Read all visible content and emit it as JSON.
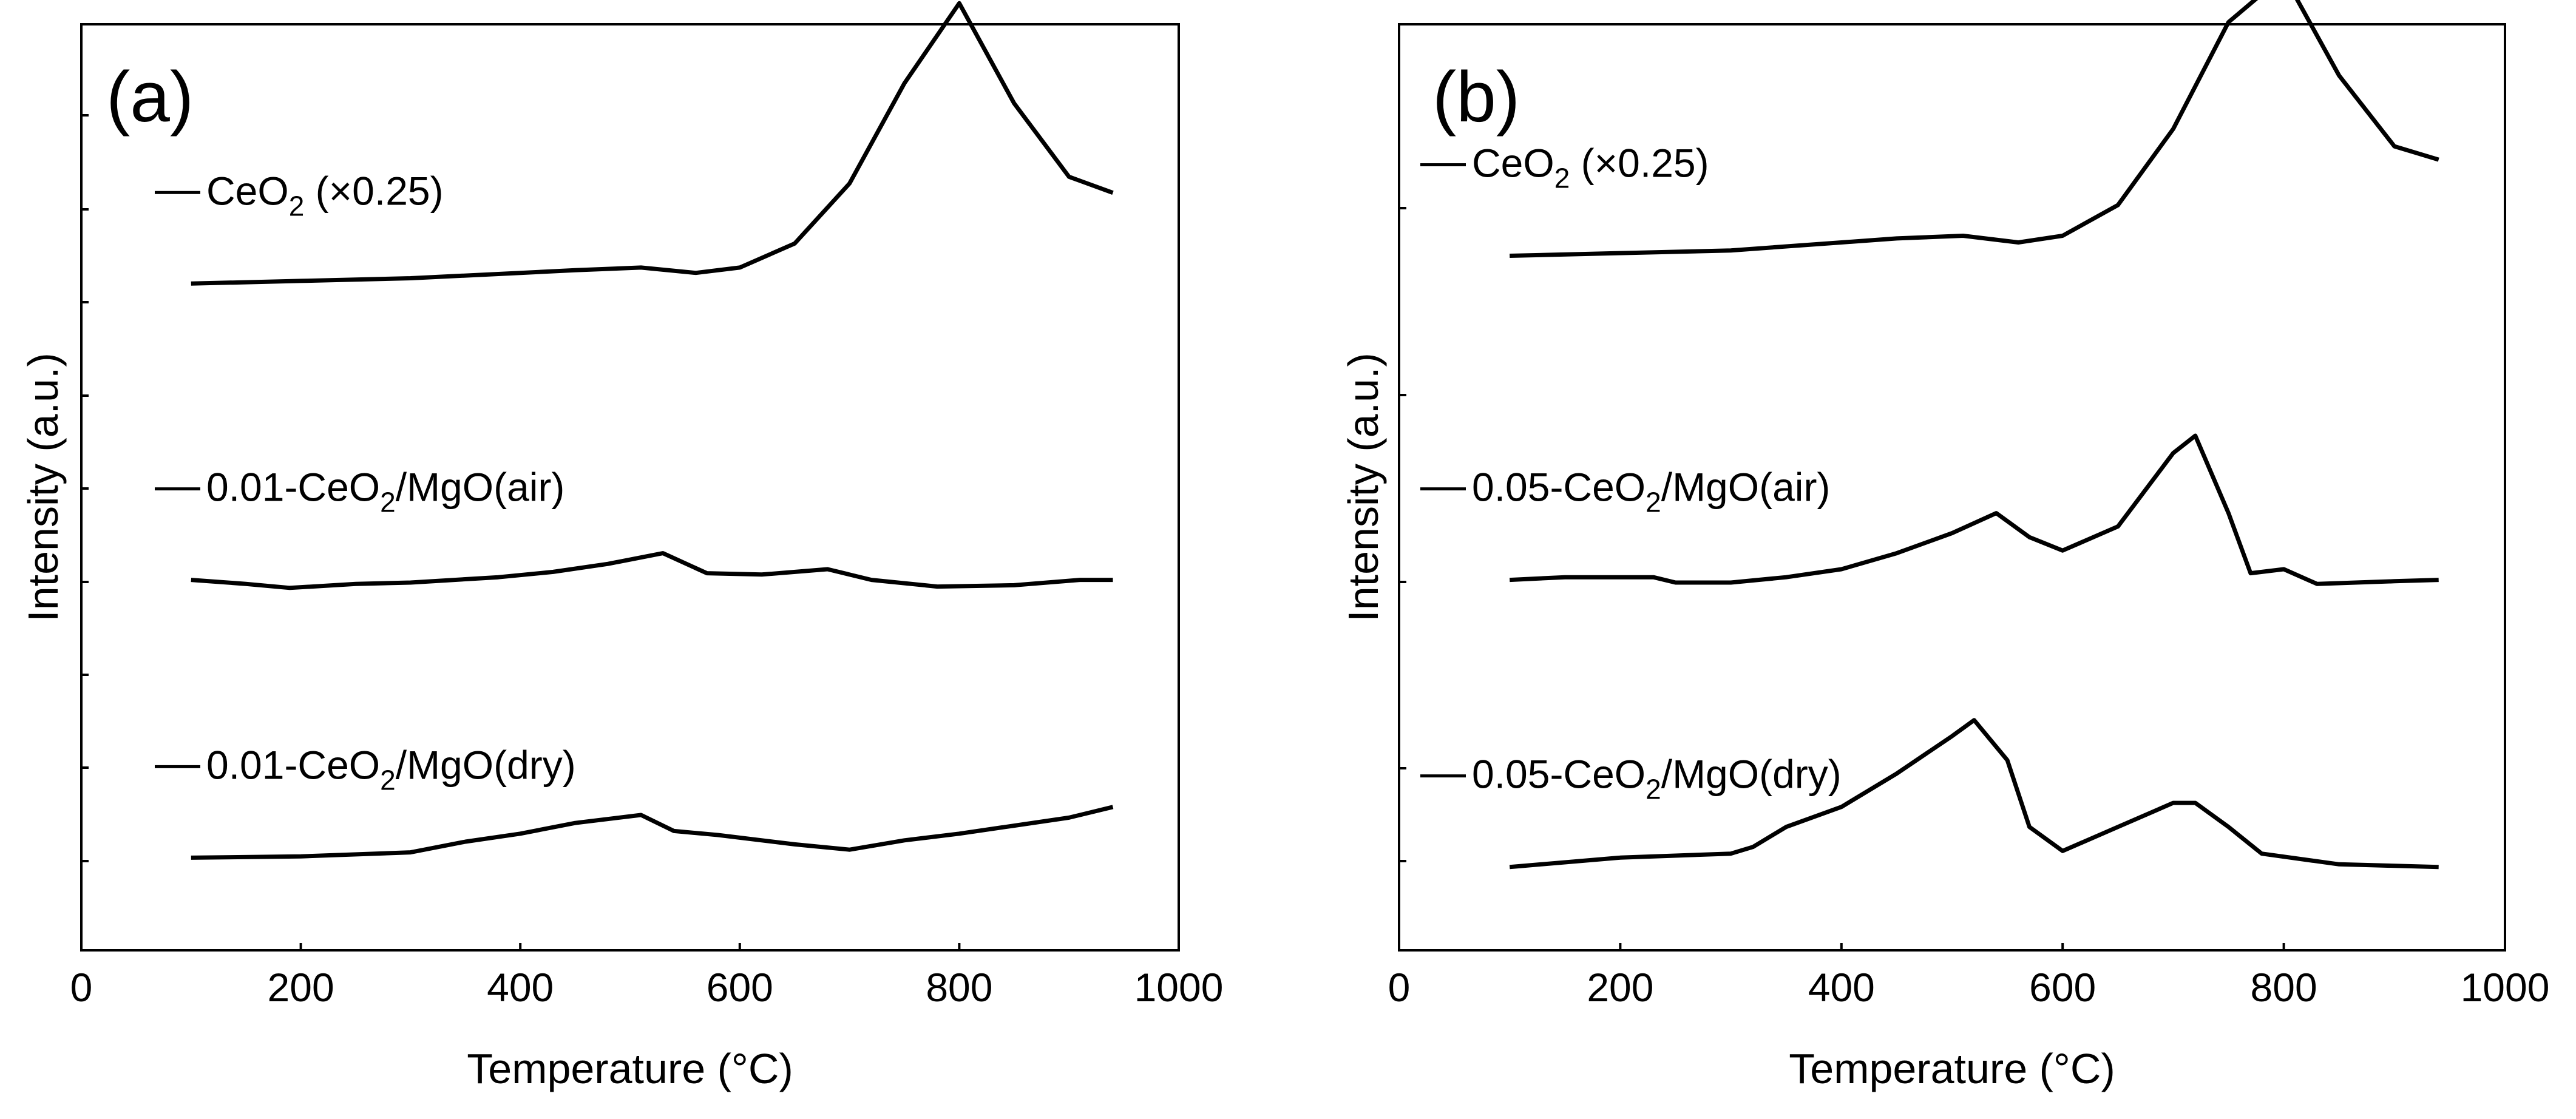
{
  "chart_data": [
    {
      "type": "line",
      "panel_label": "(a)",
      "xlabel": "Temperature (°C)",
      "ylabel": "Intensity (a.u.)",
      "xlim": [
        0,
        1000
      ],
      "xticks": [
        0,
        200,
        400,
        600,
        800,
        1000
      ],
      "yticks_count": 9,
      "grid": false,
      "series": [
        {
          "label": {
            "main": "CeO",
            "sub": "2",
            "rest": " (×0.25)"
          },
          "offset_level": 0.72,
          "x": [
            100,
            200,
            300,
            400,
            450,
            510,
            560,
            600,
            650,
            700,
            750,
            800,
            850,
            900,
            940
          ],
          "y": [
            0,
            0.02,
            0.04,
            0.08,
            0.1,
            0.12,
            0.08,
            0.12,
            0.3,
            0.75,
            1.5,
            2.1,
            1.35,
            0.8,
            0.68
          ]
        },
        {
          "label": {
            "main": "0.01-CeO",
            "sub": "2",
            "rest": "/MgO(air)"
          },
          "offset_level": 0.4,
          "x": [
            100,
            150,
            190,
            250,
            300,
            380,
            430,
            480,
            530,
            570,
            620,
            680,
            720,
            780,
            850,
            910,
            940
          ],
          "y": [
            0,
            -0.03,
            -0.06,
            -0.03,
            -0.02,
            0.02,
            0.06,
            0.12,
            0.2,
            0.05,
            0.04,
            0.08,
            0.0,
            -0.05,
            -0.04,
            0.0,
            0.0
          ]
        },
        {
          "label": {
            "main": "0.01-CeO",
            "sub": "2",
            "rest": "/MgO(dry)"
          },
          "offset_level": 0.1,
          "x": [
            100,
            200,
            300,
            350,
            400,
            450,
            510,
            540,
            580,
            650,
            700,
            750,
            800,
            850,
            900,
            940
          ],
          "y": [
            0,
            0.01,
            0.04,
            0.12,
            0.18,
            0.26,
            0.32,
            0.2,
            0.17,
            0.1,
            0.06,
            0.13,
            0.18,
            0.24,
            0.3,
            0.38
          ]
        }
      ]
    },
    {
      "type": "line",
      "panel_label": "(b)",
      "xlabel": "Temperature (°C)",
      "ylabel": "Intensity (a.u.)",
      "xlim": [
        0,
        1000
      ],
      "xticks": [
        0,
        200,
        400,
        600,
        800,
        1000
      ],
      "yticks_count": 5,
      "grid": false,
      "series": [
        {
          "label": {
            "main": "CeO",
            "sub": "2",
            "rest": " (×0.25)"
          },
          "offset_level": 0.75,
          "x": [
            100,
            200,
            300,
            400,
            450,
            510,
            560,
            600,
            650,
            700,
            750,
            800,
            850,
            900,
            940
          ],
          "y": [
            0,
            0.02,
            0.04,
            0.1,
            0.13,
            0.15,
            0.1,
            0.15,
            0.38,
            0.95,
            1.75,
            2.1,
            1.35,
            0.82,
            0.72
          ]
        },
        {
          "label": {
            "main": "0.05-CeO",
            "sub": "2",
            "rest": "/MgO(air)"
          },
          "offset_level": 0.4,
          "x": [
            100,
            150,
            230,
            250,
            300,
            350,
            400,
            450,
            500,
            540,
            570,
            600,
            650,
            700,
            720,
            750,
            770,
            800,
            830,
            900,
            940
          ],
          "y": [
            0,
            0.02,
            0.02,
            -0.02,
            -0.02,
            0.02,
            0.08,
            0.2,
            0.35,
            0.5,
            0.32,
            0.22,
            0.4,
            0.95,
            1.08,
            0.5,
            0.05,
            0.08,
            -0.03,
            -0.01,
            0.0
          ]
        },
        {
          "label": {
            "main": "0.05-CeO",
            "sub": "2",
            "rest": "/MgO(dry)"
          },
          "offset_level": 0.09,
          "x": [
            100,
            200,
            300,
            320,
            350,
            400,
            450,
            500,
            520,
            550,
            570,
            600,
            650,
            700,
            720,
            750,
            780,
            850,
            940
          ],
          "y": [
            0,
            0.07,
            0.1,
            0.15,
            0.3,
            0.45,
            0.7,
            0.98,
            1.1,
            0.8,
            0.3,
            0.12,
            0.3,
            0.48,
            0.48,
            0.3,
            0.1,
            0.02,
            0.0
          ]
        }
      ]
    }
  ]
}
